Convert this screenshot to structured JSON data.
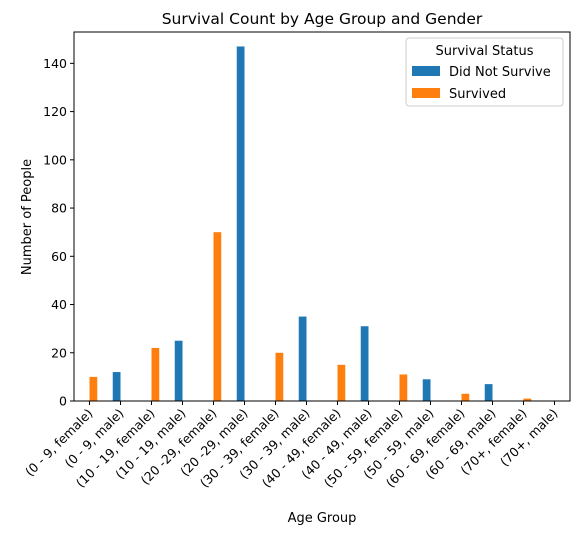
{
  "chart_data": {
    "type": "bar",
    "title": "Survival Count by Age Group and Gender",
    "xlabel": "Age Group",
    "ylabel": "Number of People",
    "ylim": [
      0,
      153
    ],
    "yticks": [
      0,
      20,
      40,
      60,
      80,
      100,
      120,
      140
    ],
    "grid": false,
    "legend": {
      "title": "Survival Status",
      "placement": "top-right"
    },
    "categories": [
      "(0 - 9, female)",
      "(0 - 9, male)",
      "(10 - 19, female)",
      "(10 - 19, male)",
      "(20 -29, female)",
      "(20 -29, male)",
      "(30 - 39, female)",
      "(30 - 39, male)",
      "(40 - 49, female)",
      "(40 - 49, male)",
      "(50 - 59, female)",
      "(50 - 59, male)",
      "(60 - 69, female)",
      "(60 - 69, male)",
      "(70+, female)",
      "(70+, male)"
    ],
    "series": [
      {
        "name": "Did Not Survive",
        "color": "#1f77b4",
        "values": [
          0,
          12,
          0,
          25,
          0,
          147,
          0,
          35,
          0,
          31,
          0,
          9,
          0,
          7,
          0,
          0
        ]
      },
      {
        "name": "Survived",
        "color": "#ff7f0e",
        "values": [
          10,
          0,
          22,
          0,
          70,
          0,
          20,
          0,
          15,
          0,
          11,
          0,
          3,
          0,
          1,
          0
        ]
      }
    ]
  }
}
